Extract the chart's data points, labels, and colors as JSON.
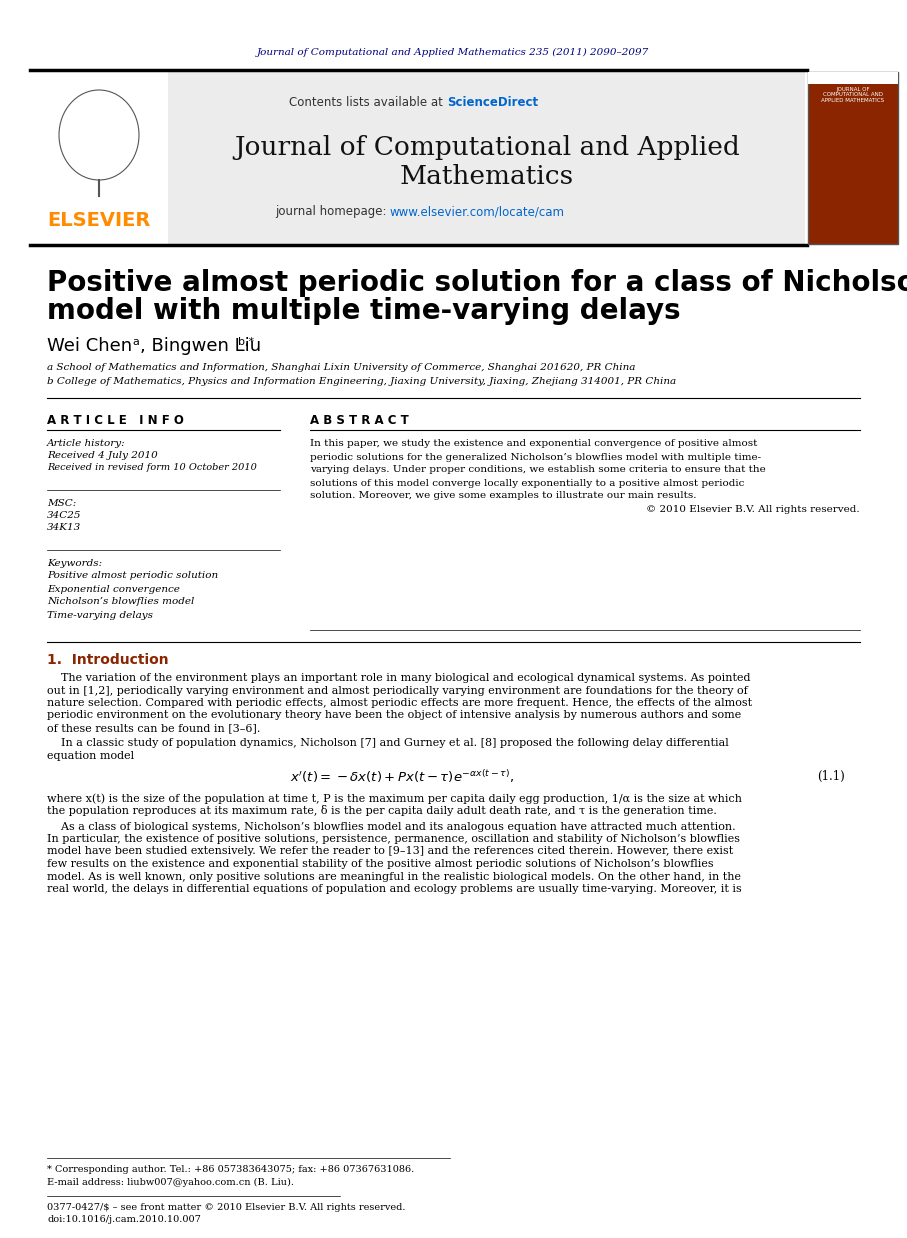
{
  "journal_header_text": "Journal of Computational and Applied Mathematics 235 (2011) 2090–2097",
  "journal_header_color": "#000080",
  "journal_name_line1": "Journal of Computational and Applied",
  "journal_name_line2": "Mathematics",
  "journal_homepage": "journal homepage: ",
  "journal_url": "www.elsevier.com/locate/cam",
  "contents_text": "Contents lists available at ",
  "sciencedirect_text": "ScienceDirect",
  "sciencedirect_color": "#0066cc",
  "elsevier_color": "#FF8C00",
  "header_bg": "#e8e8e8",
  "paper_title_line1": "Positive almost periodic solution for a class of Nicholson’s blowflies",
  "paper_title_line2": "model with multiple time-varying delays",
  "affil_a": "a School of Mathematics and Information, Shanghai Lixin University of Commerce, Shanghai 201620, PR China",
  "affil_b": "b College of Mathematics, Physics and Information Engineering, Jiaxing University, Jiaxing, Zhejiang 314001, PR China",
  "article_info_header": "A R T I C L E   I N F O",
  "abstract_header": "A B S T R A C T",
  "article_history_label": "Article history:",
  "received_text": "Received 4 July 2010",
  "revised_text": "Received in revised form 10 October 2010",
  "msc_label": "MSC:",
  "msc_codes": [
    "34C25",
    "34K13"
  ],
  "keywords_label": "Keywords:",
  "keywords": [
    "Positive almost periodic solution",
    "Exponential convergence",
    "Nicholson’s blowflies model",
    "Time-varying delays"
  ],
  "intro_header": "1.  Introduction",
  "footnote_star": "* Corresponding author. Tel.: +86 057383643075; fax: +86 07367631086.",
  "footnote_email": "E-mail address: liubw007@yahoo.com.cn (B. Liu).",
  "footnote_issn": "0377-0427/$ – see front matter © 2010 Elsevier B.V. All rights reserved.",
  "footnote_doi": "doi:10.1016/j.cam.2010.10.007",
  "bg_white": "#ffffff",
  "text_black": "#000000"
}
